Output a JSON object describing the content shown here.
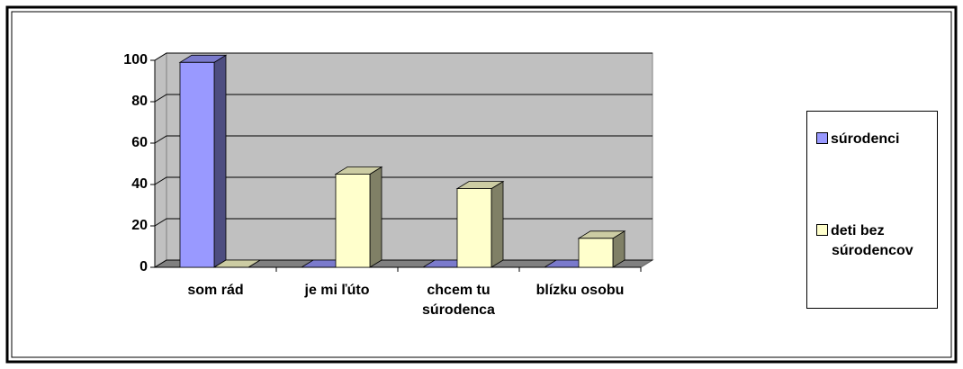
{
  "chart_data": {
    "type": "bar3d",
    "categories": [
      "som rád",
      "je mi ľúto",
      "chcem tu súrodenca",
      "blízku osobu"
    ],
    "series": [
      {
        "name": "súrodenci",
        "color": "#9999ff",
        "values": [
          99,
          0,
          0,
          0
        ]
      },
      {
        "name": "deti bez súrodencov",
        "color": "#ffffcc",
        "values": [
          0,
          45,
          38,
          14
        ]
      }
    ],
    "ylim": [
      0,
      100
    ],
    "yticks": [
      0,
      20,
      40,
      60,
      80,
      100
    ],
    "grid": true,
    "legend": "right"
  }
}
